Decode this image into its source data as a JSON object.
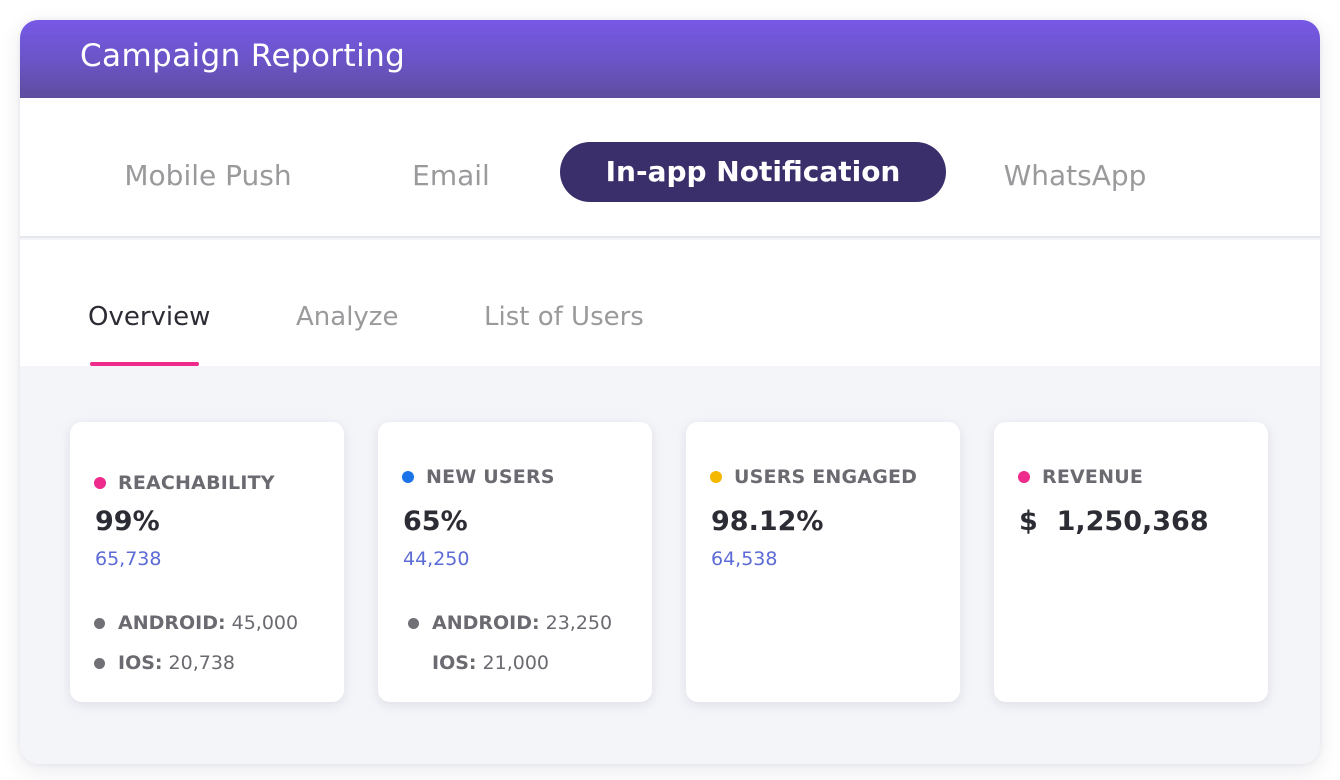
{
  "header": {
    "title": "Campaign Reporting"
  },
  "channels": [
    {
      "label": "Mobile Push",
      "active": false
    },
    {
      "label": "Email",
      "active": false
    },
    {
      "label": "In-app Notification",
      "active": true
    },
    {
      "label": "WhatsApp",
      "active": false
    }
  ],
  "tabs": [
    {
      "label": "Overview",
      "active": true
    },
    {
      "label": "Analyze",
      "active": false
    },
    {
      "label": "List of Users",
      "active": false
    }
  ],
  "colors": {
    "accent_pink": "#ee2a8a",
    "accent_blue": "#1a73e8",
    "accent_yellow": "#f5b800",
    "active_pill": "#3a2f6b",
    "header_gradient": "#7758e6",
    "link_blue": "#5c6bd6"
  },
  "cards": [
    {
      "label": "REACHABILITY",
      "dot_color": "#ee2a8a",
      "value": "99%",
      "count": "65,738",
      "breakdown": [
        {
          "key": "ANDROID:",
          "value": "45,000"
        },
        {
          "key": "IOS:",
          "value": "20,738"
        }
      ]
    },
    {
      "label": "NEW USERS",
      "dot_color": "#1a73e8",
      "value": "65%",
      "count": "44,250",
      "breakdown": [
        {
          "key": "ANDROID:",
          "value": "23,250"
        },
        {
          "key": "IOS:",
          "value": "21,000"
        }
      ]
    },
    {
      "label": "USERS ENGAGED",
      "dot_color": "#f5b800",
      "value": "98.12%",
      "count": "64,538"
    },
    {
      "label": "REVENUE",
      "dot_color": "#ee2a8a",
      "value": "$  1,250,368"
    }
  ]
}
